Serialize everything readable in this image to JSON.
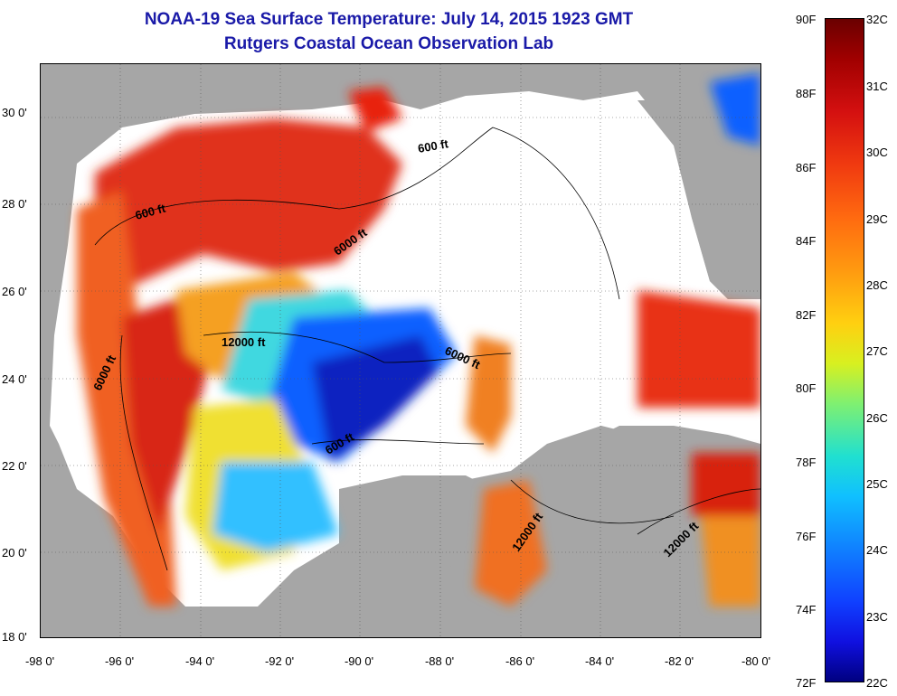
{
  "title_line1": "NOAA-19 Sea Surface Temperature:  July 14, 2015 1923 GMT",
  "title_line2": "Rutgers Coastal Ocean Observation Lab",
  "axes": {
    "lat_ticks": [
      "30 0'",
      "28 0'",
      "26 0'",
      "24 0'",
      "22 0'",
      "20 0'",
      "18 0'"
    ],
    "lon_ticks": [
      "-98 0'",
      "-96 0'",
      "-94 0'",
      "-92 0'",
      "-90 0'",
      "-88 0'",
      "-86 0'",
      "-84 0'",
      "-82 0'",
      "-80 0'"
    ],
    "lat_range": [
      18,
      31.2
    ],
    "lon_range": [
      -98,
      -80
    ]
  },
  "colorbar": {
    "fahrenheit": [
      "90F",
      "88F",
      "86F",
      "84F",
      "82F",
      "80F",
      "78F",
      "76F",
      "74F",
      "72F"
    ],
    "celsius": [
      "32C",
      "31C",
      "30C",
      "29C",
      "28C",
      "27C",
      "26C",
      "25C",
      "24C",
      "23C",
      "22C"
    ],
    "scale_colors": [
      "#6a0000",
      "#d41010",
      "#ff6a10",
      "#ffd010",
      "#80f070",
      "#10c0ff",
      "#1040ff",
      "#000080"
    ]
  },
  "contour_labels": [
    {
      "label": "600 ft",
      "rot": -15
    },
    {
      "label": "600 ft",
      "rot": -10
    },
    {
      "label": "6000 ft",
      "rot": -35
    },
    {
      "label": "6000 ft",
      "rot": -65
    },
    {
      "label": "12000 ft",
      "rot": 0
    },
    {
      "label": "6000 ft",
      "rot": 25
    },
    {
      "label": "600 ft",
      "rot": -30
    },
    {
      "label": "12000 ft",
      "rot": -55
    },
    {
      "label": "12000 ft",
      "rot": -45
    }
  ],
  "colors": {
    "land": "#a6a6a6",
    "nodata": "#ffffff",
    "title": "#1a1aa8"
  }
}
